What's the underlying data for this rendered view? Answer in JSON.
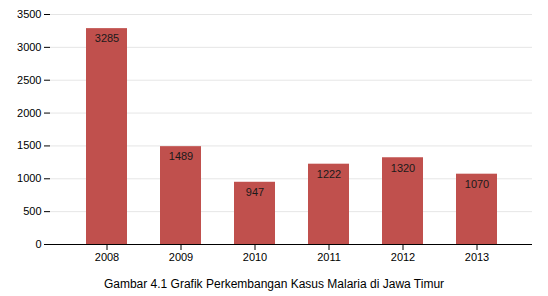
{
  "chart_data": {
    "type": "bar",
    "caption": "Gambar 4.1 Grafik Perkembangan Kasus Malaria di Jawa Timur",
    "categories": [
      "2008",
      "2009",
      "2010",
      "2011",
      "2012",
      "2013"
    ],
    "values": [
      3285,
      1489,
      947,
      1222,
      1320,
      1070
    ],
    "color": "#C0504D",
    "ylim": [
      0,
      3500
    ],
    "yticks": [
      0,
      500,
      1000,
      1500,
      2000,
      2500,
      3000,
      3500
    ],
    "grid": true,
    "data_labels": true
  }
}
